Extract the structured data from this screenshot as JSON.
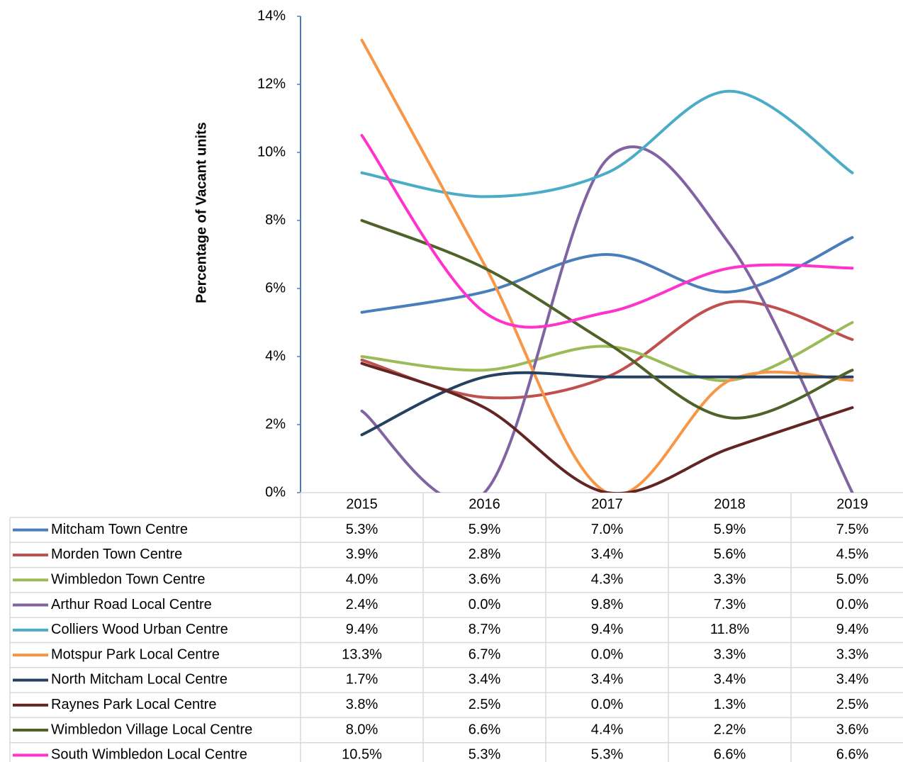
{
  "chart_data": {
    "type": "line",
    "y_axis_label": "Percentage of Vacant units",
    "categories": [
      "2015",
      "2016",
      "2017",
      "2018",
      "2019"
    ],
    "ylim": [
      0,
      14
    ],
    "yticks": [
      {
        "value": 0,
        "label": "0%"
      },
      {
        "value": 2,
        "label": "2%"
      },
      {
        "value": 4,
        "label": "4%"
      },
      {
        "value": 6,
        "label": "6%"
      },
      {
        "value": 8,
        "label": "8%"
      },
      {
        "value": 10,
        "label": "10%"
      },
      {
        "value": 12,
        "label": "12%"
      },
      {
        "value": 14,
        "label": "14%"
      }
    ],
    "smooth": true,
    "series": [
      {
        "name": "Mitcham Town Centre",
        "color": "#4a7ebb",
        "values": [
          5.3,
          5.9,
          7.0,
          5.9,
          7.5
        ],
        "value_labels": [
          "5.3%",
          "5.9%",
          "7.0%",
          "5.9%",
          "7.5%"
        ]
      },
      {
        "name": "Morden Town Centre",
        "color": "#c0504d",
        "values": [
          3.9,
          2.8,
          3.4,
          5.6,
          4.5
        ],
        "value_labels": [
          "3.9%",
          "2.8%",
          "3.4%",
          "5.6%",
          "4.5%"
        ]
      },
      {
        "name": "Wimbledon Town Centre",
        "color": "#9bbb59",
        "values": [
          4.0,
          3.6,
          4.3,
          3.3,
          5.0
        ],
        "value_labels": [
          "4.0%",
          "3.6%",
          "4.3%",
          "3.3%",
          "5.0%"
        ]
      },
      {
        "name": "Arthur Road Local Centre",
        "color": "#8064a2",
        "values": [
          2.4,
          0.0,
          9.8,
          7.3,
          0.0
        ],
        "value_labels": [
          "2.4%",
          "0.0%",
          "9.8%",
          "7.3%",
          "0.0%"
        ]
      },
      {
        "name": "Colliers Wood Urban Centre",
        "color": "#4bacc6",
        "values": [
          9.4,
          8.7,
          9.4,
          11.8,
          9.4
        ],
        "value_labels": [
          "9.4%",
          "8.7%",
          "9.4%",
          "11.8%",
          "9.4%"
        ]
      },
      {
        "name": "Motspur Park Local Centre",
        "color": "#f79646",
        "values": [
          13.3,
          6.7,
          0.0,
          3.3,
          3.3
        ],
        "value_labels": [
          "13.3%",
          "6.7%",
          "0.0%",
          "3.3%",
          "3.3%"
        ]
      },
      {
        "name": "North Mitcham Local Centre",
        "color": "#254061",
        "values": [
          1.7,
          3.4,
          3.4,
          3.4,
          3.4
        ],
        "value_labels": [
          "1.7%",
          "3.4%",
          "3.4%",
          "3.4%",
          "3.4%"
        ]
      },
      {
        "name": "Raynes Park Local Centre",
        "color": "#632523",
        "values": [
          3.8,
          2.5,
          0.0,
          1.3,
          2.5
        ],
        "value_labels": [
          "3.8%",
          "2.5%",
          "0.0%",
          "1.3%",
          "2.5%"
        ]
      },
      {
        "name": "Wimbledon Village Local Centre",
        "color": "#4f6228",
        "values": [
          8.0,
          6.6,
          4.4,
          2.2,
          3.6
        ],
        "value_labels": [
          "8.0%",
          "6.6%",
          "4.4%",
          "2.2%",
          "3.6%"
        ]
      },
      {
        "name": "South Wimbledon Local Centre",
        "color": "#ff33cc",
        "values": [
          10.5,
          5.3,
          5.3,
          6.6,
          6.6
        ],
        "value_labels": [
          "10.5%",
          "5.3%",
          "5.3%",
          "6.6%",
          "6.6%"
        ]
      }
    ]
  }
}
